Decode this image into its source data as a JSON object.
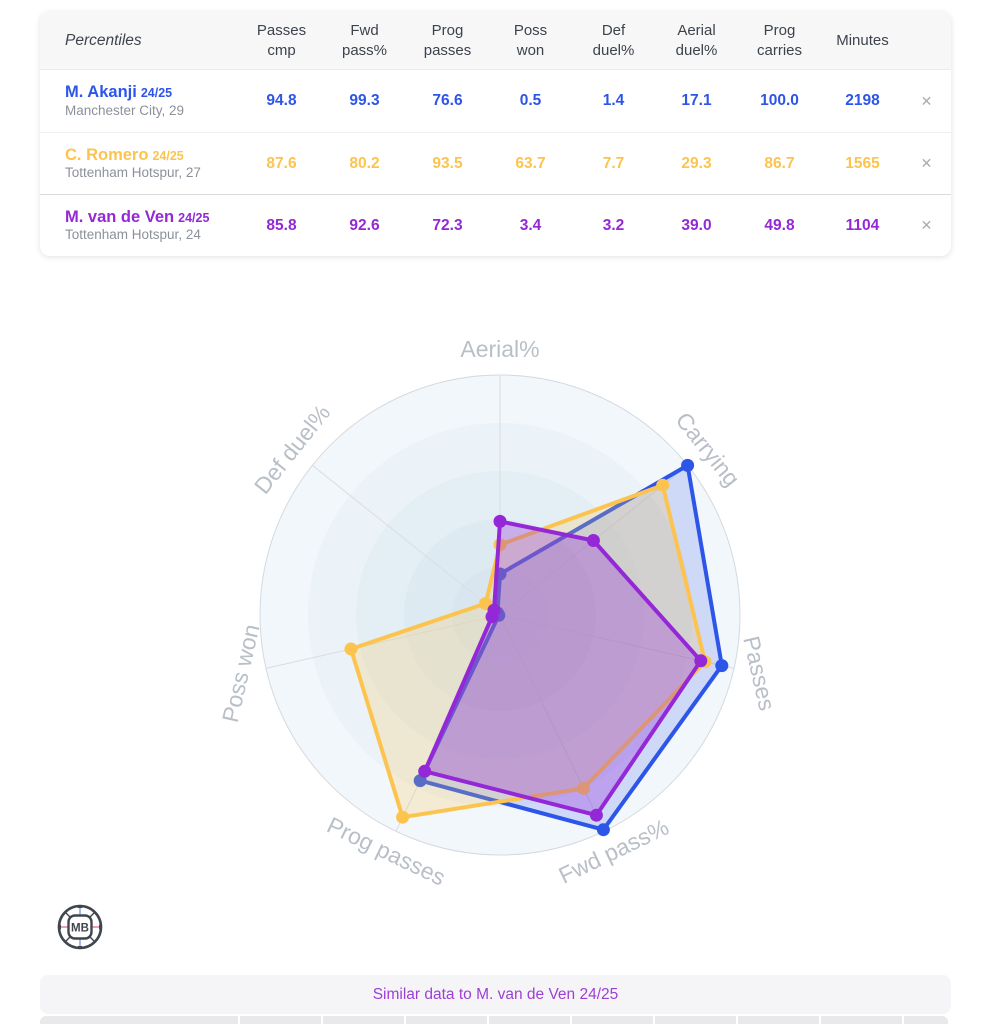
{
  "table": {
    "header_label": "Percentiles",
    "columns": [
      "Passes\ncmp",
      "Fwd\npass%",
      "Prog\npasses",
      "Poss\nwon",
      "Def\nduel%",
      "Aerial\nduel%",
      "Prog\ncarries",
      "Minutes"
    ],
    "remove_label": "✕",
    "players": [
      {
        "name": "M. Akanji",
        "season": "24/25",
        "details": "Manchester City, 29",
        "color": "#2d55e8",
        "values": [
          "94.8",
          "99.3",
          "76.6",
          "0.5",
          "1.4",
          "17.1",
          "100.0",
          "2198"
        ]
      },
      {
        "name": "C. Romero",
        "season": "24/25",
        "details": "Tottenham Hotspur, 27",
        "color": "#fcc44e",
        "values": [
          "87.6",
          "80.2",
          "93.5",
          "63.7",
          "7.7",
          "29.3",
          "86.7",
          "1565"
        ]
      },
      {
        "name": "M. van de Ven",
        "season": "24/25",
        "details": "Tottenham Hotspur, 24",
        "color": "#9428d6",
        "values": [
          "85.8",
          "92.6",
          "72.3",
          "3.4",
          "3.2",
          "39.0",
          "49.8",
          "1104"
        ]
      }
    ]
  },
  "chart_data": {
    "type": "radar",
    "axes": [
      "Aerial%",
      "Carrying",
      "Passes",
      "Fwd pass%",
      "Prog passes",
      "Poss won",
      "Def duel%"
    ],
    "axis_range": [
      0,
      100
    ],
    "grid": "concentric-circles",
    "legend_position": "none",
    "series": [
      {
        "name": "M. Akanji 24/25",
        "color": "#2d55e8",
        "fill_opacity": 0.18,
        "values": [
          17.1,
          100.0,
          94.8,
          99.3,
          76.6,
          0.5,
          1.4
        ]
      },
      {
        "name": "C. Romero 24/25",
        "color": "#fcc44e",
        "fill_opacity": 0.22,
        "values": [
          29.3,
          86.7,
          87.6,
          80.2,
          93.5,
          63.7,
          7.7
        ]
      },
      {
        "name": "M. van de Ven 24/25",
        "color": "#9428d6",
        "fill_opacity": 0.3,
        "values": [
          39.0,
          49.8,
          85.8,
          92.6,
          72.3,
          3.4,
          3.2
        ]
      }
    ]
  },
  "footer": {
    "similar_label": "Similar data to M. van de Ven 24/25"
  },
  "logo_text": "MB"
}
